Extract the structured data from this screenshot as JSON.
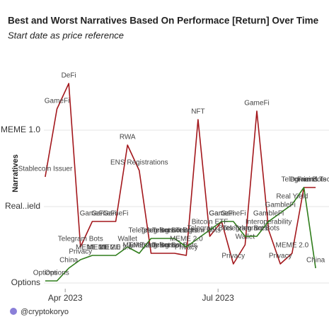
{
  "chart_data": {
    "type": "line",
    "title": "Best and Worst Narratives Based On Performace [Return] Over Time",
    "subtitle": "Start date as price reference",
    "ylabel": "Narratives",
    "footer": "@cryptokoryo",
    "x": [
      0,
      1,
      2,
      3,
      4,
      5,
      6,
      7,
      8,
      9,
      10,
      11,
      12,
      13,
      14,
      15,
      16,
      17,
      18,
      19,
      20,
      21,
      22,
      23
    ],
    "xlim": [
      -1.5,
      24.5
    ],
    "xticks": [
      {
        "value": 1.7,
        "label": "Apr 2023"
      },
      {
        "value": 14.7,
        "label": "Jul 2023"
      }
    ],
    "ylim": [
      -2,
      100
    ],
    "yticks": [
      {
        "value": 0,
        "label": "Options"
      },
      {
        "value": 36,
        "label": "Real..ield"
      },
      {
        "value": 72,
        "label": "MEME 1.0"
      }
    ],
    "grid": true,
    "series": [
      {
        "color": "#a3171c",
        "values": [
          50,
          82,
          94,
          17,
          29,
          29,
          29,
          65,
          53,
          14,
          14,
          14,
          13,
          77,
          22,
          29,
          9,
          18,
          81,
          25,
          9,
          14,
          45,
          45
        ],
        "point_labels": [
          "Stablecoin Issuer",
          "GameFi",
          "DeFi",
          "Telegram Bots",
          "GameFi",
          "GameFi",
          "GameFi",
          "RWA",
          "ENS Registrations",
          "Telegram Bots",
          "Telegram Bots",
          "Telegram Bots",
          "Privacy",
          "NFT",
          "Telegram Bots",
          "GameFi",
          "Privacy",
          "Wallet",
          "GameFi",
          "Interoperability",
          "Privacy",
          "MEME 2.0",
          "Domains",
          "Friend.Tech"
        ]
      },
      {
        "color": "#2f7d1b",
        "values": [
          1,
          1,
          7,
          11,
          13,
          13,
          13,
          17,
          14,
          21,
          21,
          21,
          17,
          21,
          25,
          29,
          29,
          22,
          22,
          29,
          33,
          37,
          45,
          7
        ],
        "point_labels": [
          "Options",
          "Options",
          "China",
          "Privacy",
          "MEME 2.0",
          "MEME 2.0",
          "MEME 2.0",
          "Wallet",
          "MEME 2.0",
          "Telegram Bots",
          "Telegram Bots",
          "Telegram Bots",
          "MEME 2.0",
          "Telegram Bots",
          "Bitcoin ETF",
          "GameFi",
          "GameFi",
          "Telegram Bots",
          "Telegram Bots",
          "GambleFi",
          "GambleFi",
          "Real Yield",
          "Telegram Bots",
          "China"
        ]
      }
    ]
  }
}
